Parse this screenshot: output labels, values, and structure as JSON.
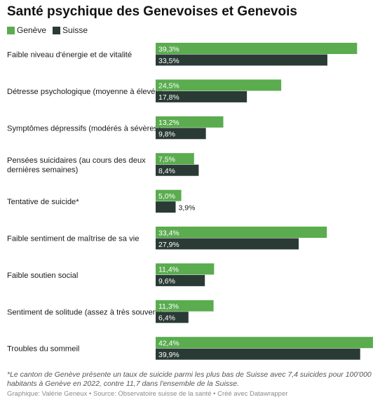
{
  "title": "Santé psychique des Genevoises et Genevois",
  "legend": [
    {
      "label": "Genève",
      "color": "#5aac4f"
    },
    {
      "label": "Suisse",
      "color": "#2a3a35"
    }
  ],
  "chart_data": {
    "type": "bar",
    "orientation": "horizontal",
    "categories": [
      [
        "Faible niveau d'énergie et de vitalité"
      ],
      [
        "Détresse psychologique (moyenne à élevée)"
      ],
      [
        "Symptômes dépressifs (modérés à sévères)"
      ],
      [
        "Pensées suicidaires (au cours des deux",
        "dernières semaines)"
      ],
      [
        "Tentative de suicide*"
      ],
      [
        "Faible sentiment de maîtrise de sa vie"
      ],
      [
        "Faible soutien social"
      ],
      [
        "Sentiment de solitude (assez à très souvent)"
      ],
      [
        "Troubles du sommeil"
      ]
    ],
    "series": [
      {
        "name": "Genève",
        "color": "#5aac4f",
        "values": [
          39.3,
          24.5,
          13.2,
          7.5,
          5.0,
          33.4,
          11.4,
          11.3,
          42.4
        ],
        "labels": [
          "39,3%",
          "24,5%",
          "13,2%",
          "7,5%",
          "5,0%",
          "33,4%",
          "11,4%",
          "11,3%",
          "42,4%"
        ]
      },
      {
        "name": "Suisse",
        "color": "#2a3a35",
        "values": [
          33.5,
          17.8,
          9.8,
          8.4,
          3.9,
          27.9,
          9.6,
          6.4,
          39.9
        ],
        "labels": [
          "33,5%",
          "17,8%",
          "9,8%",
          "8,4%",
          "3,9%",
          "27,9%",
          "9,6%",
          "6,4%",
          "39,9%"
        ]
      }
    ],
    "xlim": [
      0,
      42.4
    ],
    "grid": false,
    "legend_position": "top-left"
  },
  "footnote": "*Le canton de Genève présente un taux de suicide parmi les plus bas de Suisse avec 7,4 suicides pour 100'000 habitants à Genève en 2022, contre 11,7 dans l'ensemble de la Suisse.",
  "credits": "Graphique: Valérie Geneux • Source: Observatoire suisse de la santé • Créé avec Datawrapper"
}
